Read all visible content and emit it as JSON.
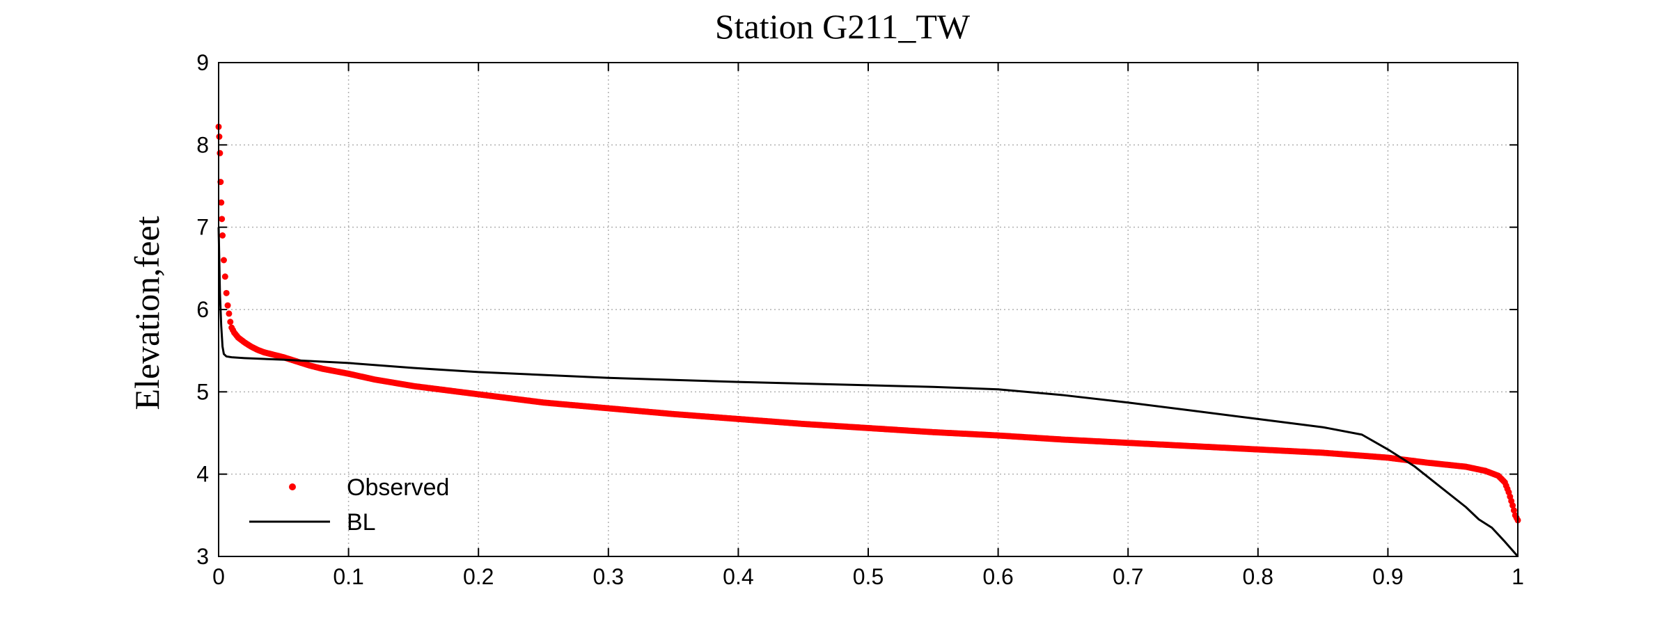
{
  "chart_data": {
    "type": "line",
    "title": "Station G211_TW",
    "xlabel": "",
    "ylabel": "Elevation,feet",
    "xlim": [
      0,
      1
    ],
    "ylim": [
      3,
      9
    ],
    "xticks": [
      "0",
      "0.1",
      "0.2",
      "0.3",
      "0.4",
      "0.5",
      "0.6",
      "0.7",
      "0.8",
      "0.9",
      "1"
    ],
    "yticks": [
      "3",
      "4",
      "5",
      "6",
      "7",
      "8",
      "9"
    ],
    "grid": true,
    "legend": {
      "placement": "bottom-left"
    },
    "series": [
      {
        "name": "Observed",
        "style": "markers",
        "color": "#ff0000",
        "x": [
          0,
          0.0005,
          0.001,
          0.0015,
          0.002,
          0.0025,
          0.003,
          0.004,
          0.005,
          0.006,
          0.007,
          0.008,
          0.009,
          0.01,
          0.012,
          0.015,
          0.02,
          0.025,
          0.03,
          0.035,
          0.04,
          0.05,
          0.06,
          0.07,
          0.08,
          0.1,
          0.12,
          0.15,
          0.2,
          0.25,
          0.3,
          0.35,
          0.4,
          0.45,
          0.5,
          0.55,
          0.6,
          0.65,
          0.7,
          0.75,
          0.8,
          0.85,
          0.9,
          0.93,
          0.96,
          0.975,
          0.985,
          0.99,
          0.993,
          0.996,
          0.998,
          1.0
        ],
        "y": [
          8.22,
          8.1,
          7.9,
          7.55,
          7.3,
          7.1,
          6.9,
          6.6,
          6.4,
          6.2,
          6.05,
          5.95,
          5.85,
          5.78,
          5.72,
          5.66,
          5.6,
          5.55,
          5.51,
          5.48,
          5.46,
          5.42,
          5.37,
          5.32,
          5.28,
          5.22,
          5.15,
          5.07,
          4.97,
          4.87,
          4.8,
          4.73,
          4.67,
          4.61,
          4.56,
          4.51,
          4.47,
          4.42,
          4.38,
          4.34,
          4.3,
          4.26,
          4.2,
          4.14,
          4.09,
          4.04,
          3.98,
          3.9,
          3.78,
          3.62,
          3.5,
          3.44
        ]
      },
      {
        "name": "BL",
        "style": "line",
        "color": "#000000",
        "x": [
          0,
          0.001,
          0.002,
          0.003,
          0.004,
          0.006,
          0.01,
          0.02,
          0.05,
          0.1,
          0.15,
          0.2,
          0.3,
          0.4,
          0.5,
          0.55,
          0.6,
          0.65,
          0.7,
          0.75,
          0.8,
          0.85,
          0.88,
          0.9,
          0.92,
          0.94,
          0.96,
          0.97,
          0.98,
          0.99,
          1.0
        ],
        "y": [
          7.0,
          6.2,
          5.8,
          5.55,
          5.46,
          5.43,
          5.42,
          5.41,
          5.39,
          5.35,
          5.29,
          5.24,
          5.17,
          5.12,
          5.08,
          5.06,
          5.03,
          4.96,
          4.87,
          4.77,
          4.67,
          4.57,
          4.48,
          4.3,
          4.1,
          3.85,
          3.6,
          3.45,
          3.35,
          3.18,
          3.0
        ]
      }
    ]
  }
}
